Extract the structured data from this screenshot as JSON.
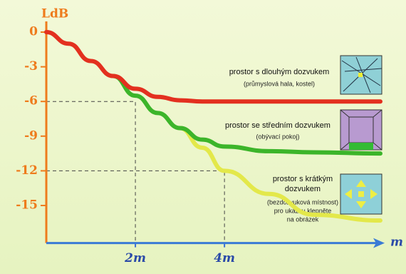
{
  "chart_data": {
    "type": "line",
    "y_label": "LdB",
    "x_label": "m",
    "x": [
      0,
      0.5,
      1,
      1.5,
      2,
      2.5,
      3,
      3.5,
      4,
      5,
      6,
      7.5
    ],
    "series": [
      {
        "name": "prostor s dlouhým dozvukem",
        "color": "#e3301f",
        "values": [
          0,
          -1,
          -2.5,
          -3.8,
          -4.9,
          -5.6,
          -5.9,
          -6,
          -6,
          -6,
          -6,
          -6
        ]
      },
      {
        "name": "prostor se středním dozvukem",
        "color": "#3cb52a",
        "values": [
          null,
          null,
          null,
          -3.8,
          -5.5,
          -7,
          -8.3,
          -9.3,
          -9.9,
          -10.3,
          -10.4,
          -10.5
        ]
      },
      {
        "name": "prostor s krátkým dozvukem",
        "color": "#e3e84a",
        "values": [
          null,
          null,
          null,
          null,
          null,
          null,
          -8.3,
          -10,
          -12,
          -14,
          -15.8,
          -16.3
        ]
      }
    ],
    "notes": [
      "(průmyslová hala, kostel)",
      "(obývací pokoj)",
      "(bezdozvuková místnost)",
      "pro ukázku klepněte",
      "na obrázek"
    ],
    "xlim": [
      0,
      7.5
    ],
    "ylim": [
      -18,
      1
    ],
    "xticks": [
      {
        "value": 2,
        "label": "2m"
      },
      {
        "value": 4,
        "label": "4m"
      }
    ],
    "yticks": [
      0,
      -3,
      -6,
      -9,
      -12,
      -15
    ]
  }
}
